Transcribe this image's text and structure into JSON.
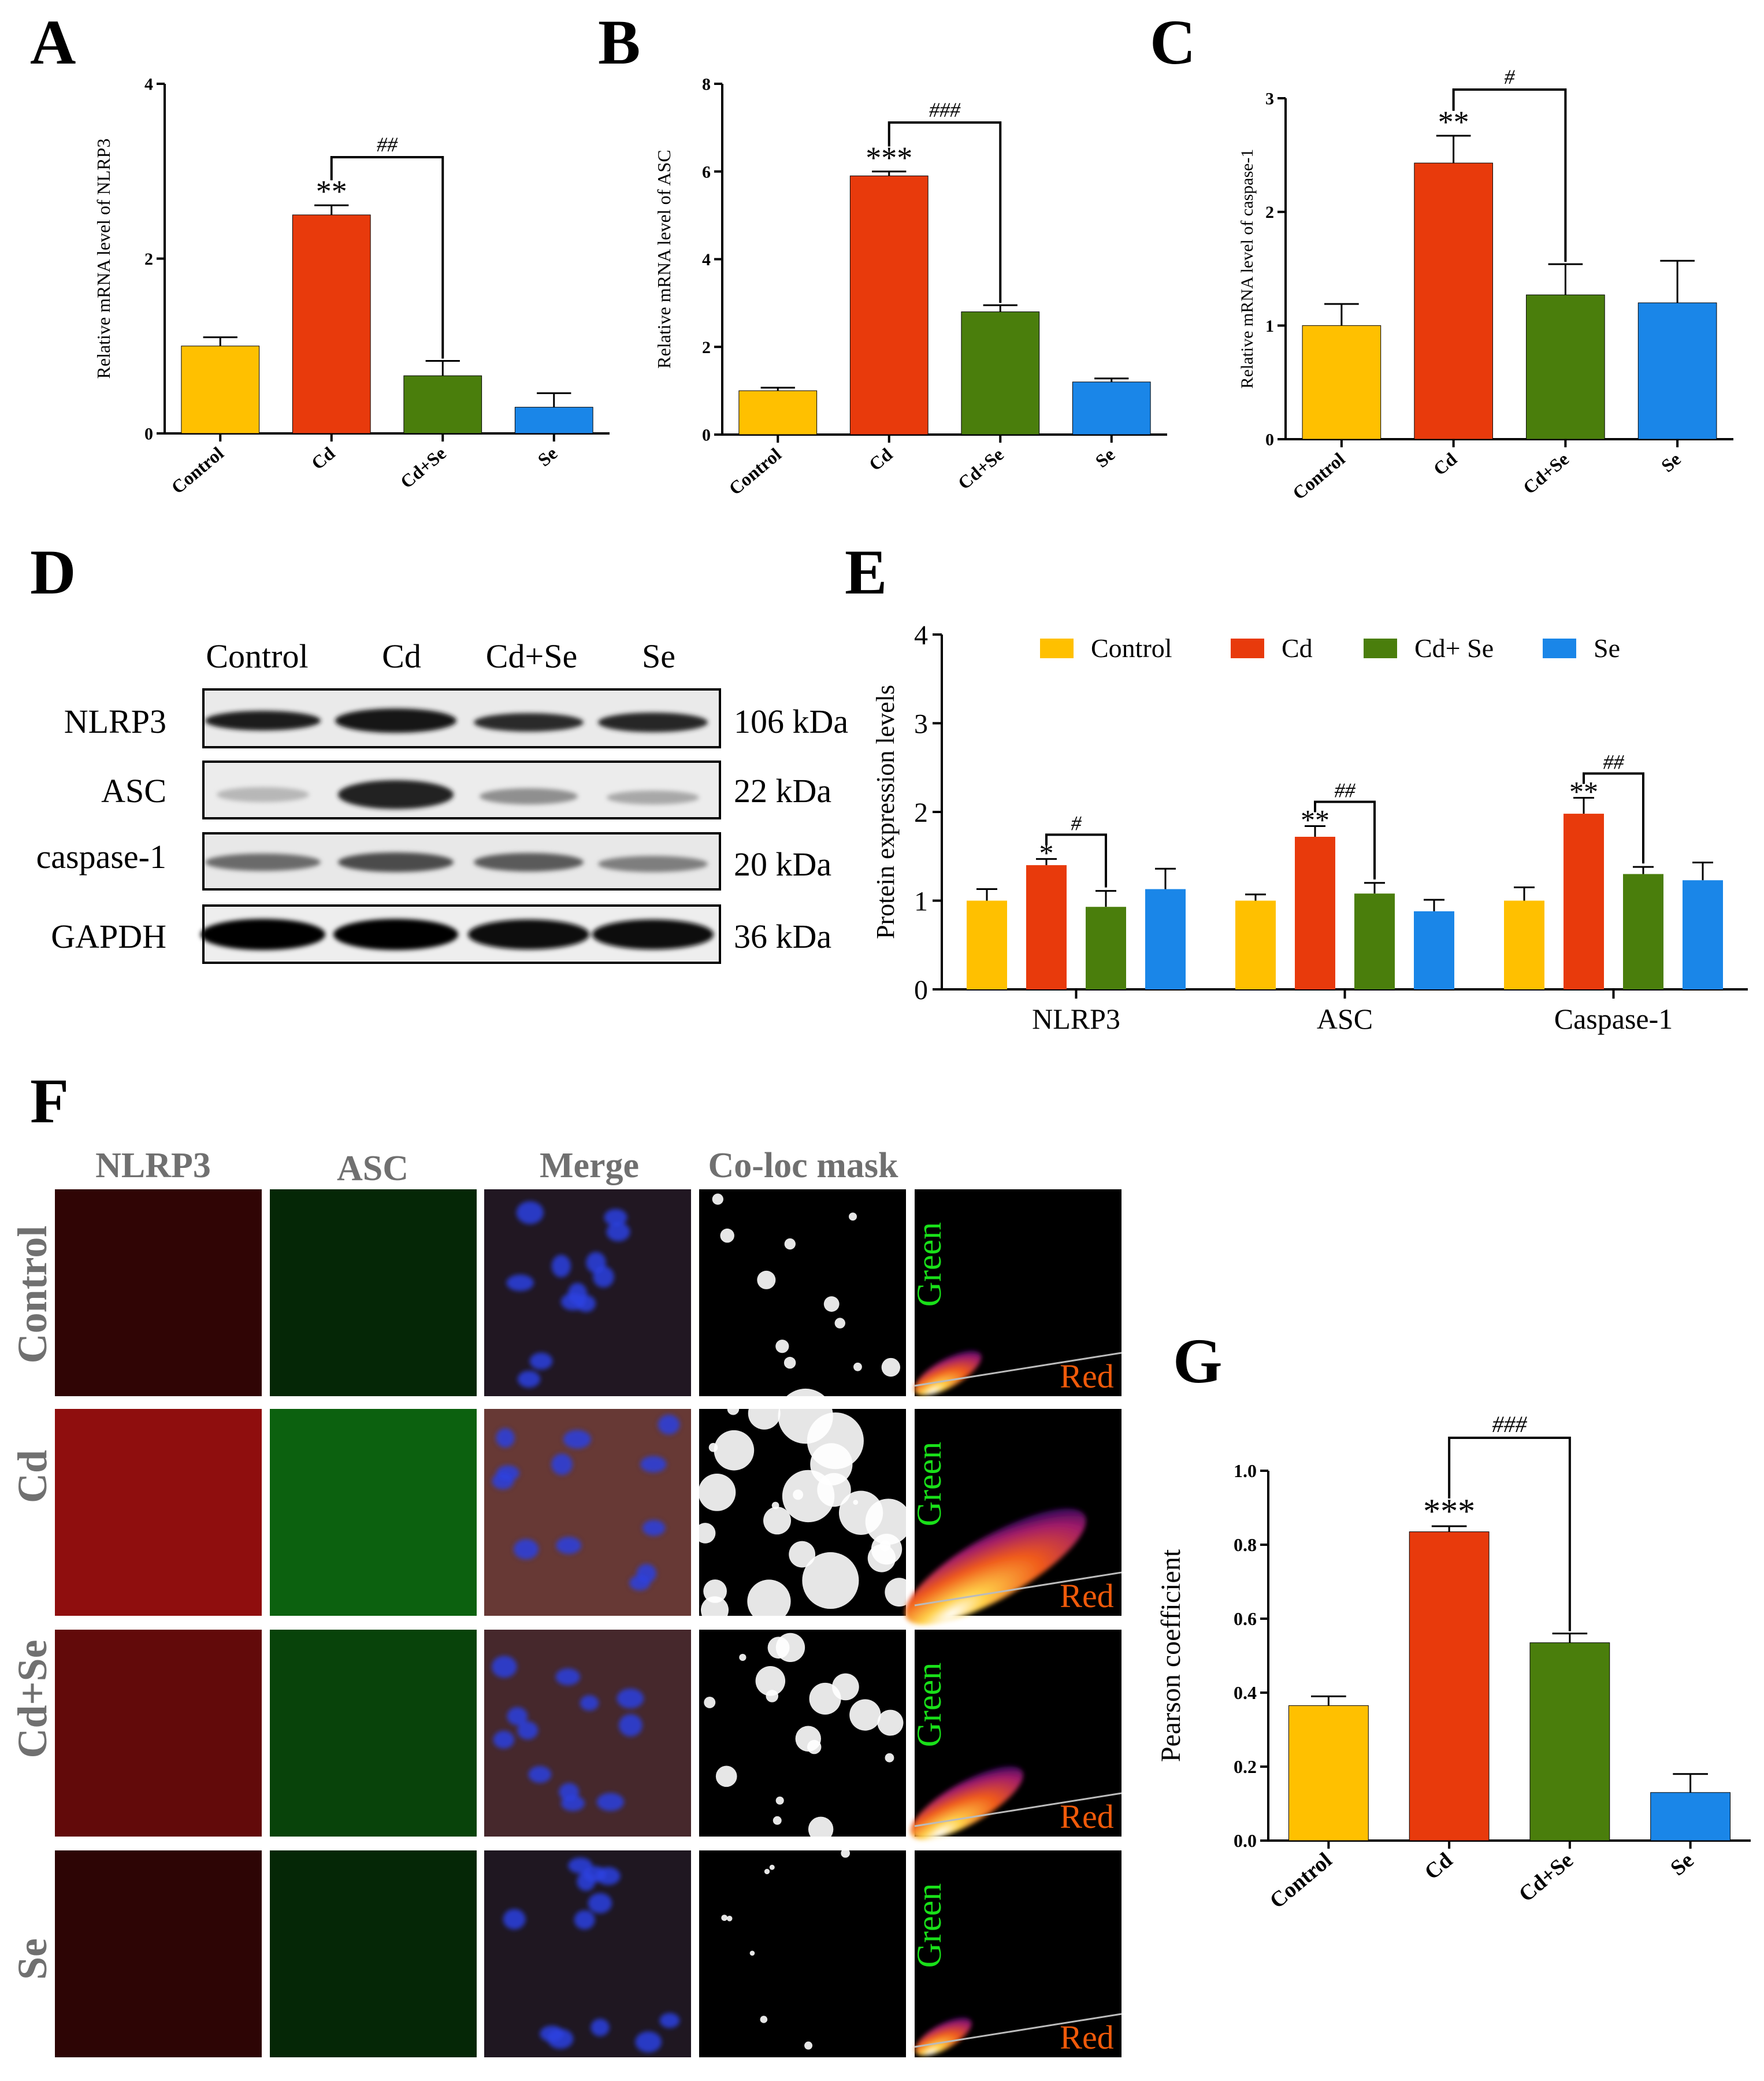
{
  "panels": {
    "A": "A",
    "B": "B",
    "C": "C",
    "D": "D",
    "E": "E",
    "F": "F",
    "G": "G"
  },
  "colors": {
    "Control": "#FFC000",
    "Cd": "#E83A0C",
    "Cd+Se": "#4A7E0C",
    "Se": "#1A86E8"
  },
  "chart_data": [
    {
      "id": "A",
      "type": "bar",
      "categories": [
        "Control",
        "Cd",
        "Cd+Se",
        "Se"
      ],
      "values": [
        1.0,
        2.5,
        0.66,
        0.3
      ],
      "errors": [
        0.1,
        0.11,
        0.17,
        0.16
      ],
      "ylabel": "Relative  mRNA  level of NLRP3",
      "ylim": [
        0,
        4
      ],
      "yticks": [
        "0",
        "2",
        "4"
      ],
      "star_labels": [
        "",
        "**",
        "",
        ""
      ],
      "bracket": {
        "from": 1,
        "to": 2,
        "label": "##"
      }
    },
    {
      "id": "B",
      "type": "bar",
      "categories": [
        "Control",
        "Cd",
        "Cd+Se",
        "Se"
      ],
      "values": [
        1.0,
        5.9,
        2.8,
        1.2
      ],
      "errors": [
        0.07,
        0.1,
        0.15,
        0.08
      ],
      "ylabel": "Relative  mRNA  level of ASC",
      "ylim": [
        0,
        8
      ],
      "yticks": [
        "0",
        "2",
        "4",
        "6",
        "8"
      ],
      "star_labels": [
        "",
        "***",
        "",
        ""
      ],
      "bracket": {
        "from": 1,
        "to": 2,
        "label": "###"
      }
    },
    {
      "id": "C",
      "type": "bar",
      "categories": [
        "Control",
        "Cd",
        "Cd+Se",
        "Se"
      ],
      "values": [
        1.0,
        2.43,
        1.27,
        1.2
      ],
      "errors": [
        0.19,
        0.24,
        0.27,
        0.37
      ],
      "ylabel": "Relative  mRNA  level of caspase-1",
      "ylim": [
        0,
        3
      ],
      "yticks": [
        "0",
        "1",
        "2",
        "3"
      ],
      "star_labels": [
        "",
        "**",
        "",
        ""
      ],
      "bracket": {
        "from": 1,
        "to": 2,
        "label": "#"
      }
    },
    {
      "id": "E",
      "type": "bar",
      "categories": [
        "NLRP3",
        "ASC",
        "Caspase-1"
      ],
      "series": [
        {
          "name": "Control",
          "values": [
            1.0,
            1.0,
            1.0
          ],
          "errors": [
            0.13,
            0.07,
            0.15
          ]
        },
        {
          "name": "Cd",
          "values": [
            1.4,
            1.72,
            1.98
          ],
          "errors": [
            0.07,
            0.12,
            0.18
          ]
        },
        {
          "name": "Cd+ Se",
          "values": [
            0.93,
            1.08,
            1.3
          ],
          "errors": [
            0.18,
            0.12,
            0.08
          ]
        },
        {
          "name": "Se",
          "values": [
            1.13,
            0.88,
            1.23
          ],
          "errors": [
            0.23,
            0.13,
            0.2
          ]
        }
      ],
      "ylabel": "Protein expression levels",
      "ylim": [
        0,
        4
      ],
      "yticks": [
        "0",
        "1",
        "2",
        "3",
        "4"
      ],
      "legend_position": "top",
      "star_labels": [
        "*",
        "**",
        "**"
      ],
      "bracket_labels": [
        "#",
        "##",
        "##"
      ]
    },
    {
      "id": "G",
      "type": "bar",
      "categories": [
        "Control",
        "Cd",
        "Cd+Se",
        "Se"
      ],
      "values": [
        0.365,
        0.835,
        0.535,
        0.13
      ],
      "errors": [
        0.025,
        0.015,
        0.025,
        0.05
      ],
      "ylabel": "Pearson coefficient",
      "ylim": [
        0,
        1.0
      ],
      "yticks": [
        "0.0",
        "0.2",
        "0.4",
        "0.6",
        "0.8",
        "1.0"
      ],
      "star_labels": [
        "",
        "***",
        "",
        ""
      ],
      "bracket": {
        "from": 1,
        "to": 2,
        "label": "###"
      }
    }
  ],
  "western_blot": {
    "columns": [
      "Control",
      "Cd",
      "Cd+Se",
      "Se"
    ],
    "rows": [
      {
        "protein": "NLRP3",
        "size": "106 kDa"
      },
      {
        "protein": "ASC",
        "size": "22 kDa"
      },
      {
        "protein": "caspase-1",
        "size": "20 kDa"
      },
      {
        "protein": "GAPDH",
        "size": "36 kDa"
      }
    ]
  },
  "immunofluorescence": {
    "column_headers": [
      "NLRP3",
      "ASC",
      "Merge",
      "Co-loc mask"
    ],
    "row_labels": [
      "Control",
      "Cd",
      "Cd+Se",
      "Se"
    ],
    "scatter_labels": {
      "green": "Green",
      "red": "Red"
    }
  }
}
